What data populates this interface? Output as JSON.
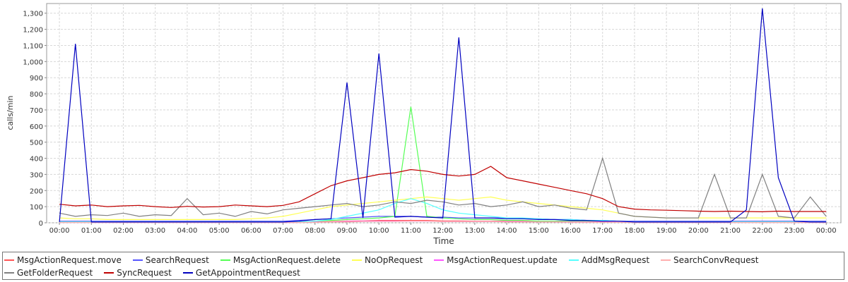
{
  "chart_data": {
    "type": "line",
    "y_label": "calls/min",
    "x_label": "Time",
    "x": [
      0,
      0.5,
      1,
      1.5,
      2,
      2.5,
      3,
      3.5,
      4,
      4.5,
      5,
      5.5,
      6,
      6.5,
      7,
      7.5,
      8,
      8.5,
      9,
      9.5,
      10,
      10.5,
      11,
      11.5,
      12,
      12.5,
      13,
      13.5,
      14,
      14.5,
      15,
      15.5,
      16,
      16.5,
      17,
      17.5,
      18,
      18.5,
      19,
      19.5,
      20,
      20.5,
      21,
      21.5,
      22,
      22.5,
      23,
      23.5,
      24
    ],
    "xlim": [
      -0.4,
      24.46
    ],
    "xticks": [
      {
        "value": 0,
        "label": "00:00"
      },
      {
        "value": 1,
        "label": "01:00"
      },
      {
        "value": 2,
        "label": "02:00"
      },
      {
        "value": 3,
        "label": "03:00"
      },
      {
        "value": 4,
        "label": "04:00"
      },
      {
        "value": 5,
        "label": "05:00"
      },
      {
        "value": 6,
        "label": "06:00"
      },
      {
        "value": 7,
        "label": "07:00"
      },
      {
        "value": 8,
        "label": "08:00"
      },
      {
        "value": 9,
        "label": "09:00"
      },
      {
        "value": 10,
        "label": "10:00"
      },
      {
        "value": 11,
        "label": "11:00"
      },
      {
        "value": 12,
        "label": "12:00"
      },
      {
        "value": 13,
        "label": "13:00"
      },
      {
        "value": 14,
        "label": "14:00"
      },
      {
        "value": 15,
        "label": "15:00"
      },
      {
        "value": 16,
        "label": "16:00"
      },
      {
        "value": 17,
        "label": "17:00"
      },
      {
        "value": 18,
        "label": "18:00"
      },
      {
        "value": 19,
        "label": "19:00"
      },
      {
        "value": 20,
        "label": "20:00"
      },
      {
        "value": 21,
        "label": "21:00"
      },
      {
        "value": 22,
        "label": "22:00"
      },
      {
        "value": 23,
        "label": "23:00"
      },
      {
        "value": 24,
        "label": "00:00"
      }
    ],
    "ylim": [
      0,
      1360
    ],
    "yticks": [
      0,
      100,
      200,
      300,
      400,
      500,
      600,
      700,
      800,
      900,
      {
        "value": 1000,
        "label": "1,000"
      },
      {
        "value": 1100,
        "label": "1,100"
      },
      {
        "value": 1200,
        "label": "1,200"
      },
      {
        "value": 1300,
        "label": "1,300"
      }
    ],
    "grid": true,
    "series": [
      {
        "name": "MsgActionRequest.move",
        "color": "#ff5555",
        "values": [
          3,
          3,
          3,
          3,
          3,
          3,
          3,
          3,
          3,
          3,
          3,
          3,
          3,
          3,
          3,
          3,
          5,
          8,
          10,
          12,
          15,
          15,
          15,
          15,
          12,
          12,
          10,
          10,
          10,
          10,
          8,
          8,
          5,
          5,
          5,
          5,
          3,
          3,
          3,
          3,
          3,
          3,
          3,
          3,
          3,
          3,
          3,
          3,
          3
        ]
      },
      {
        "name": "SearchRequest",
        "color": "#5555ff",
        "values": [
          10,
          10,
          10,
          10,
          10,
          10,
          10,
          10,
          10,
          10,
          10,
          10,
          10,
          10,
          10,
          15,
          20,
          25,
          30,
          35,
          40,
          40,
          40,
          35,
          35,
          30,
          30,
          30,
          30,
          25,
          25,
          20,
          20,
          15,
          15,
          10,
          10,
          10,
          10,
          10,
          10,
          10,
          10,
          10,
          10,
          10,
          10,
          10,
          10
        ]
      },
      {
        "name": "MsgActionRequest.delete",
        "color": "#55ff55",
        "values": [
          5,
          5,
          5,
          5,
          5,
          5,
          5,
          5,
          5,
          5,
          5,
          5,
          5,
          5,
          5,
          5,
          10,
          15,
          20,
          25,
          30,
          40,
          720,
          40,
          30,
          25,
          20,
          20,
          15,
          15,
          10,
          10,
          10,
          10,
          10,
          10,
          5,
          5,
          5,
          5,
          5,
          5,
          5,
          5,
          5,
          5,
          5,
          5,
          5
        ]
      },
      {
        "name": "NoOpRequest",
        "color": "#ffff55",
        "values": [
          30,
          25,
          25,
          20,
          20,
          20,
          20,
          20,
          20,
          20,
          20,
          20,
          25,
          30,
          40,
          60,
          80,
          100,
          110,
          120,
          130,
          140,
          150,
          160,
          150,
          140,
          150,
          160,
          140,
          130,
          120,
          110,
          100,
          90,
          80,
          60,
          40,
          35,
          30,
          30,
          30,
          30,
          30,
          30,
          30,
          30,
          30,
          30,
          30
        ]
      },
      {
        "name": "MsgActionRequest.update",
        "color": "#ff55ff",
        "values": [
          2,
          2,
          2,
          2,
          2,
          2,
          2,
          2,
          2,
          2,
          2,
          2,
          2,
          2,
          2,
          2,
          5,
          5,
          8,
          10,
          10,
          10,
          10,
          10,
          8,
          8,
          8,
          8,
          8,
          8,
          5,
          5,
          5,
          5,
          5,
          5,
          2,
          2,
          2,
          2,
          2,
          2,
          2,
          2,
          2,
          2,
          2,
          2,
          2
        ]
      },
      {
        "name": "AddMsgRequest",
        "color": "#55ffff",
        "values": [
          5,
          5,
          5,
          5,
          5,
          5,
          5,
          5,
          5,
          5,
          5,
          5,
          5,
          5,
          5,
          5,
          10,
          20,
          40,
          60,
          80,
          120,
          150,
          120,
          80,
          60,
          50,
          40,
          30,
          30,
          25,
          20,
          20,
          15,
          15,
          10,
          5,
          5,
          5,
          5,
          5,
          5,
          5,
          5,
          5,
          5,
          5,
          5,
          5
        ]
      },
      {
        "name": "SearchConvRequest",
        "color": "#ffafaf",
        "values": [
          2,
          2,
          2,
          2,
          2,
          2,
          2,
          2,
          2,
          2,
          2,
          2,
          2,
          2,
          2,
          2,
          3,
          5,
          5,
          8,
          8,
          8,
          10,
          10,
          8,
          8,
          8,
          8,
          5,
          5,
          5,
          5,
          3,
          3,
          3,
          3,
          2,
          2,
          2,
          2,
          2,
          2,
          2,
          2,
          2,
          2,
          2,
          2,
          2
        ]
      },
      {
        "name": "GetFolderRequest",
        "color": "#808080",
        "values": [
          60,
          40,
          50,
          45,
          60,
          40,
          50,
          45,
          150,
          50,
          60,
          40,
          70,
          55,
          80,
          90,
          100,
          110,
          120,
          100,
          110,
          130,
          120,
          140,
          130,
          110,
          120,
          100,
          110,
          130,
          100,
          110,
          90,
          80,
          400,
          60,
          40,
          35,
          30,
          30,
          30,
          300,
          30,
          30,
          300,
          40,
          30,
          160,
          40
        ]
      },
      {
        "name": "SyncRequest",
        "color": "#c00000",
        "values": [
          115,
          105,
          110,
          100,
          105,
          108,
          100,
          95,
          102,
          98,
          100,
          110,
          105,
          100,
          108,
          130,
          180,
          230,
          260,
          280,
          300,
          310,
          330,
          320,
          300,
          290,
          300,
          350,
          280,
          260,
          240,
          220,
          200,
          180,
          150,
          100,
          85,
          80,
          78,
          75,
          72,
          70,
          72,
          70,
          68,
          72,
          70,
          70,
          70
        ]
      },
      {
        "name": "GetAppointmentRequest",
        "color": "#0000c0",
        "values": [
          5,
          1110,
          5,
          5,
          5,
          5,
          5,
          5,
          5,
          5,
          5,
          5,
          5,
          5,
          5,
          10,
          20,
          25,
          870,
          30,
          1050,
          35,
          40,
          35,
          30,
          1150,
          30,
          30,
          25,
          25,
          20,
          20,
          15,
          15,
          10,
          10,
          5,
          5,
          5,
          5,
          5,
          5,
          5,
          80,
          1330,
          280,
          10,
          5,
          5
        ]
      }
    ]
  }
}
